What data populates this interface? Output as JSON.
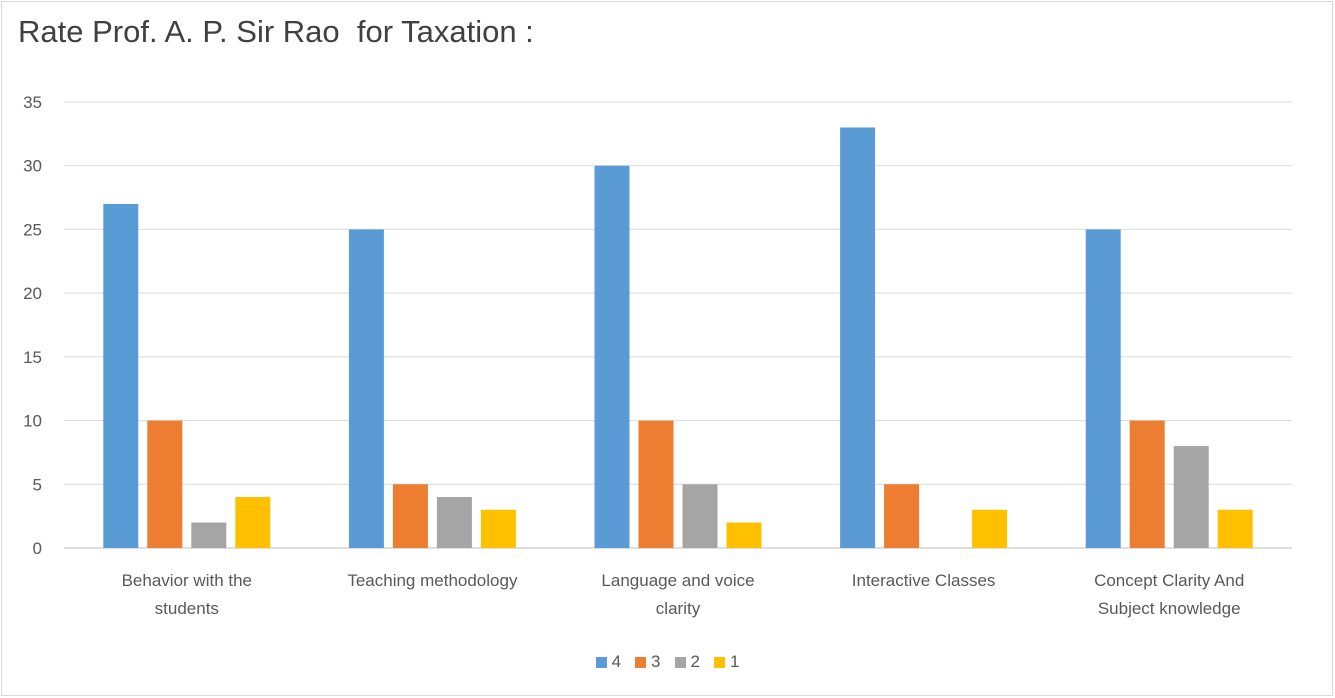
{
  "chart_data": {
    "type": "bar",
    "title": "Rate Prof. A. P. Sir Rao  for Taxation :",
    "categories": [
      [
        "Behavior with the",
        "students"
      ],
      [
        "Teaching methodology"
      ],
      [
        "Language and voice",
        "clarity"
      ],
      [
        "Interactive Classes"
      ],
      [
        "Concept Clarity And",
        "Subject knowledge"
      ]
    ],
    "series": [
      {
        "name": "4",
        "color": "#5b9bd5",
        "values": [
          27,
          25,
          30,
          33,
          25
        ]
      },
      {
        "name": "3",
        "color": "#ed7d31",
        "values": [
          10,
          5,
          10,
          5,
          10
        ]
      },
      {
        "name": "2",
        "color": "#a5a5a5",
        "values": [
          2,
          4,
          5,
          0,
          8
        ]
      },
      {
        "name": "1",
        "color": "#ffc000",
        "values": [
          4,
          3,
          2,
          3,
          3
        ]
      }
    ],
    "ylim": [
      0,
      35
    ],
    "yticks": [
      0,
      5,
      10,
      15,
      20,
      25,
      30,
      35
    ],
    "grid": true,
    "legend_position": "bottom"
  }
}
